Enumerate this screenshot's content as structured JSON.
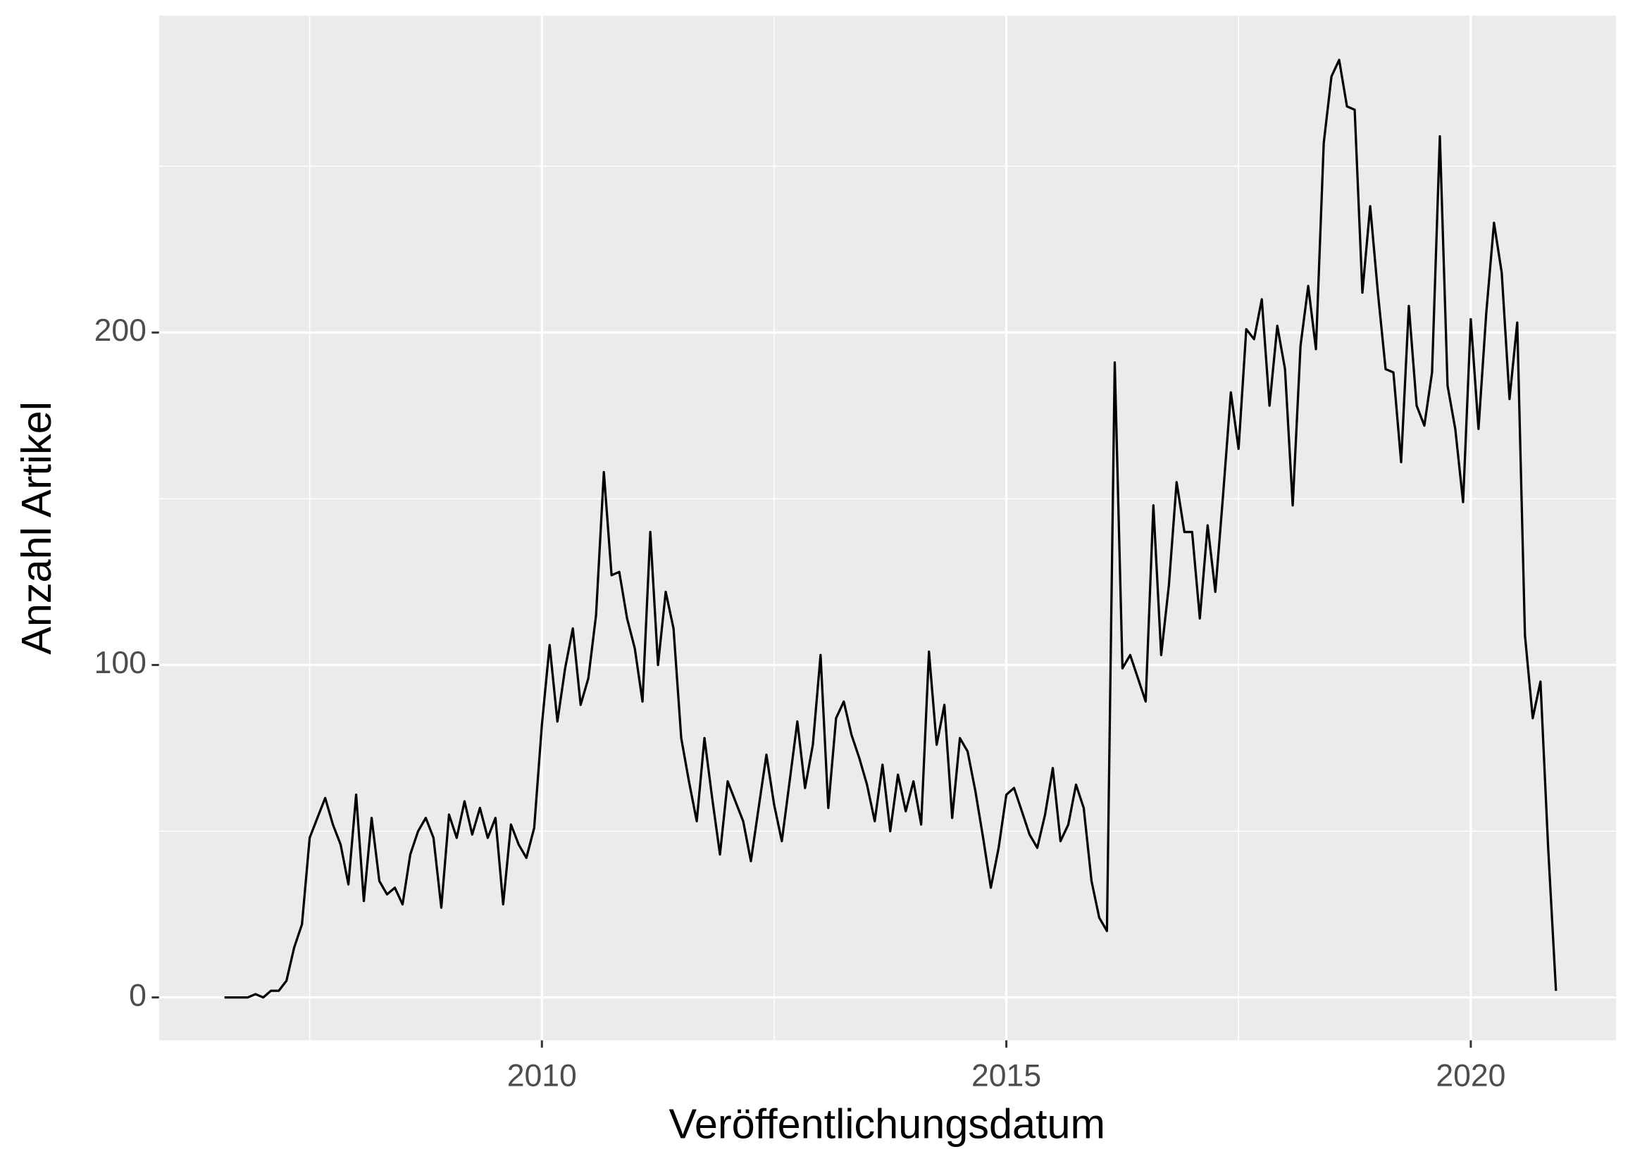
{
  "chart_data": {
    "type": "line",
    "x_label": "Veröffentlichungsdatum",
    "y_label": "Anzahl Artikel",
    "x": [
      2006.583,
      2006.667,
      2006.75,
      2006.833,
      2006.917,
      2007,
      2007.083,
      2007.167,
      2007.25,
      2007.333,
      2007.417,
      2007.5,
      2007.583,
      2007.667,
      2007.75,
      2007.833,
      2007.917,
      2008,
      2008.083,
      2008.167,
      2008.25,
      2008.333,
      2008.417,
      2008.5,
      2008.583,
      2008.667,
      2008.75,
      2008.833,
      2008.917,
      2009,
      2009.083,
      2009.167,
      2009.25,
      2009.333,
      2009.417,
      2009.5,
      2009.583,
      2009.667,
      2009.75,
      2009.833,
      2009.917,
      2010,
      2010.083,
      2010.167,
      2010.25,
      2010.333,
      2010.417,
      2010.5,
      2010.583,
      2010.667,
      2010.75,
      2010.833,
      2010.917,
      2011,
      2011.083,
      2011.167,
      2011.25,
      2011.333,
      2011.417,
      2011.5,
      2011.583,
      2011.667,
      2011.75,
      2011.833,
      2011.917,
      2012,
      2012.083,
      2012.167,
      2012.25,
      2012.333,
      2012.417,
      2012.5,
      2012.583,
      2012.667,
      2012.75,
      2012.833,
      2012.917,
      2013,
      2013.083,
      2013.167,
      2013.25,
      2013.333,
      2013.417,
      2013.5,
      2013.583,
      2013.667,
      2013.75,
      2013.833,
      2013.917,
      2014,
      2014.083,
      2014.167,
      2014.25,
      2014.333,
      2014.417,
      2014.5,
      2014.583,
      2014.667,
      2014.75,
      2014.833,
      2014.917,
      2015,
      2015.083,
      2015.167,
      2015.25,
      2015.333,
      2015.417,
      2015.5,
      2015.583,
      2015.667,
      2015.75,
      2015.833,
      2015.917,
      2016,
      2016.083,
      2016.167,
      2016.25,
      2016.333,
      2016.417,
      2016.5,
      2016.583,
      2016.667,
      2016.75,
      2016.833,
      2016.917,
      2017,
      2017.083,
      2017.167,
      2017.25,
      2017.333,
      2017.417,
      2017.5,
      2017.583,
      2017.667,
      2017.75,
      2017.833,
      2017.917,
      2018,
      2018.083,
      2018.167,
      2018.25,
      2018.333,
      2018.417,
      2018.5,
      2018.583,
      2018.667,
      2018.75,
      2018.833,
      2018.917,
      2019,
      2019.083,
      2019.167,
      2019.25,
      2019.333,
      2019.417,
      2019.5,
      2019.583,
      2019.667,
      2019.75,
      2019.833,
      2019.917,
      2020,
      2020.083,
      2020.167,
      2020.25,
      2020.333,
      2020.417,
      2020.5,
      2020.583,
      2020.667,
      2020.75,
      2020.833,
      2020.917
    ],
    "series": [
      {
        "color": "#000000",
        "values": [
          0,
          0,
          0,
          0,
          1,
          0,
          2,
          2,
          5,
          15,
          22,
          48,
          54,
          60,
          52,
          46,
          34,
          61,
          29,
          54,
          35,
          31,
          33,
          28,
          43,
          50,
          54,
          48,
          27,
          55,
          48,
          59,
          49,
          57,
          48,
          54,
          28,
          52,
          46,
          42,
          51,
          82,
          106,
          83,
          99,
          111,
          88,
          96,
          115,
          158,
          127,
          128,
          114,
          105,
          89,
          140,
          100,
          122,
          111,
          78,
          65,
          53,
          78,
          60,
          43,
          65,
          59,
          53,
          41,
          57,
          73,
          58,
          47,
          65,
          83,
          63,
          76,
          103,
          57,
          84,
          89,
          79,
          72,
          64,
          53,
          70,
          50,
          67,
          56,
          65,
          52,
          104,
          76,
          88,
          54,
          78,
          74,
          62,
          48,
          33,
          45,
          61,
          63,
          56,
          49,
          45,
          55,
          69,
          47,
          52,
          64,
          57,
          35,
          24,
          20,
          191,
          99,
          103,
          96,
          89,
          148,
          103,
          124,
          155,
          140,
          140,
          114,
          142,
          122,
          151,
          182,
          165,
          201,
          198,
          210,
          178,
          202,
          189,
          148,
          196,
          214,
          195,
          257,
          277,
          282,
          268,
          267,
          212,
          238,
          212,
          189,
          188,
          161,
          208,
          178,
          172,
          188,
          259,
          184,
          171,
          149,
          204,
          171,
          206,
          233,
          218,
          180,
          203,
          109,
          84,
          95,
          45,
          2
        ]
      }
    ],
    "xlim": [
      2005.878,
      2021.565
    ],
    "ylim": [
      -12.9,
      295.3
    ],
    "xticks": [
      2010,
      2015,
      2020
    ],
    "yticks": [
      0,
      100,
      200
    ],
    "x_minor_grid": [
      2007.5,
      2012.5,
      2017.5
    ],
    "y_minor_grid": [
      50,
      150,
      250
    ],
    "grid": true,
    "panel_color": "#ebebeb"
  }
}
